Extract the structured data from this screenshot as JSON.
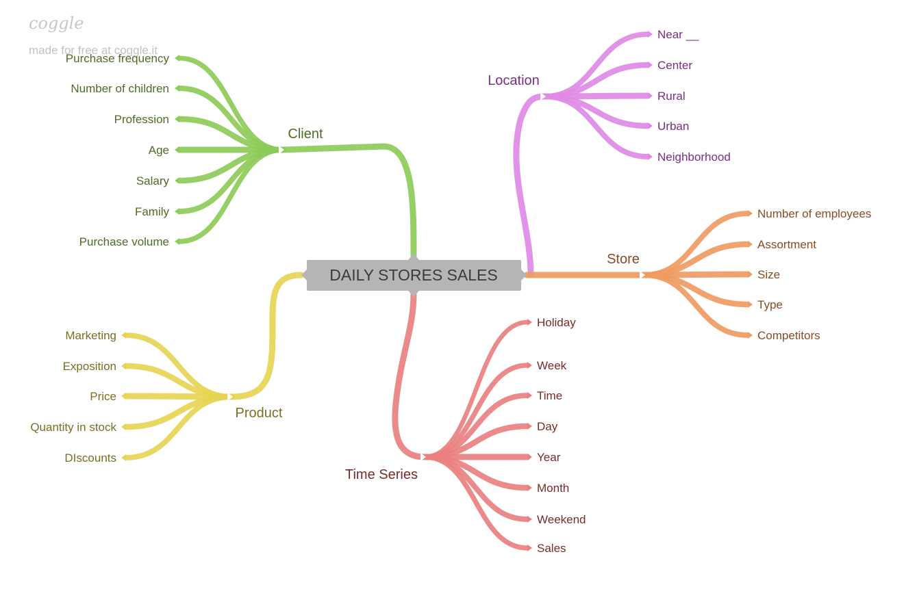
{
  "watermark": {
    "logo": "coggle",
    "tagline": "made for free at coggle.it"
  },
  "center": {
    "label": "DAILY STORES SALES"
  },
  "branches": {
    "client": {
      "label": "Client",
      "color": "#8dcb58",
      "text_color": "#4e6b25",
      "leaves": [
        "Purchase frequency",
        "Number of children",
        "Profession",
        "Age",
        "Salary",
        "Family",
        "Purchase volume"
      ]
    },
    "product": {
      "label": "Product",
      "color": "#e6d452",
      "text_color": "#7a6e22",
      "leaves": [
        "Marketing",
        "Exposition",
        "Price",
        "Quantity in stock",
        "DIscounts"
      ]
    },
    "location": {
      "label": "Location",
      "color": "#de8be5",
      "text_color": "#7b2d84",
      "leaves": [
        "Near __",
        "Center",
        "Rural",
        "Urban",
        "Neighborhood"
      ]
    },
    "store": {
      "label": "Store",
      "color": "#ef9b62",
      "text_color": "#8a4a22",
      "leaves": [
        "Number of employees",
        "Assortment",
        "Size",
        "Type",
        "Competitors"
      ]
    },
    "time_series": {
      "label": "Time Series",
      "color": "#e98080",
      "text_color": "#7b2a2a",
      "leaves": [
        "Holiday",
        "Week",
        "Time",
        "Day",
        "Year",
        "Month",
        "Weekend",
        "Sales"
      ]
    }
  }
}
